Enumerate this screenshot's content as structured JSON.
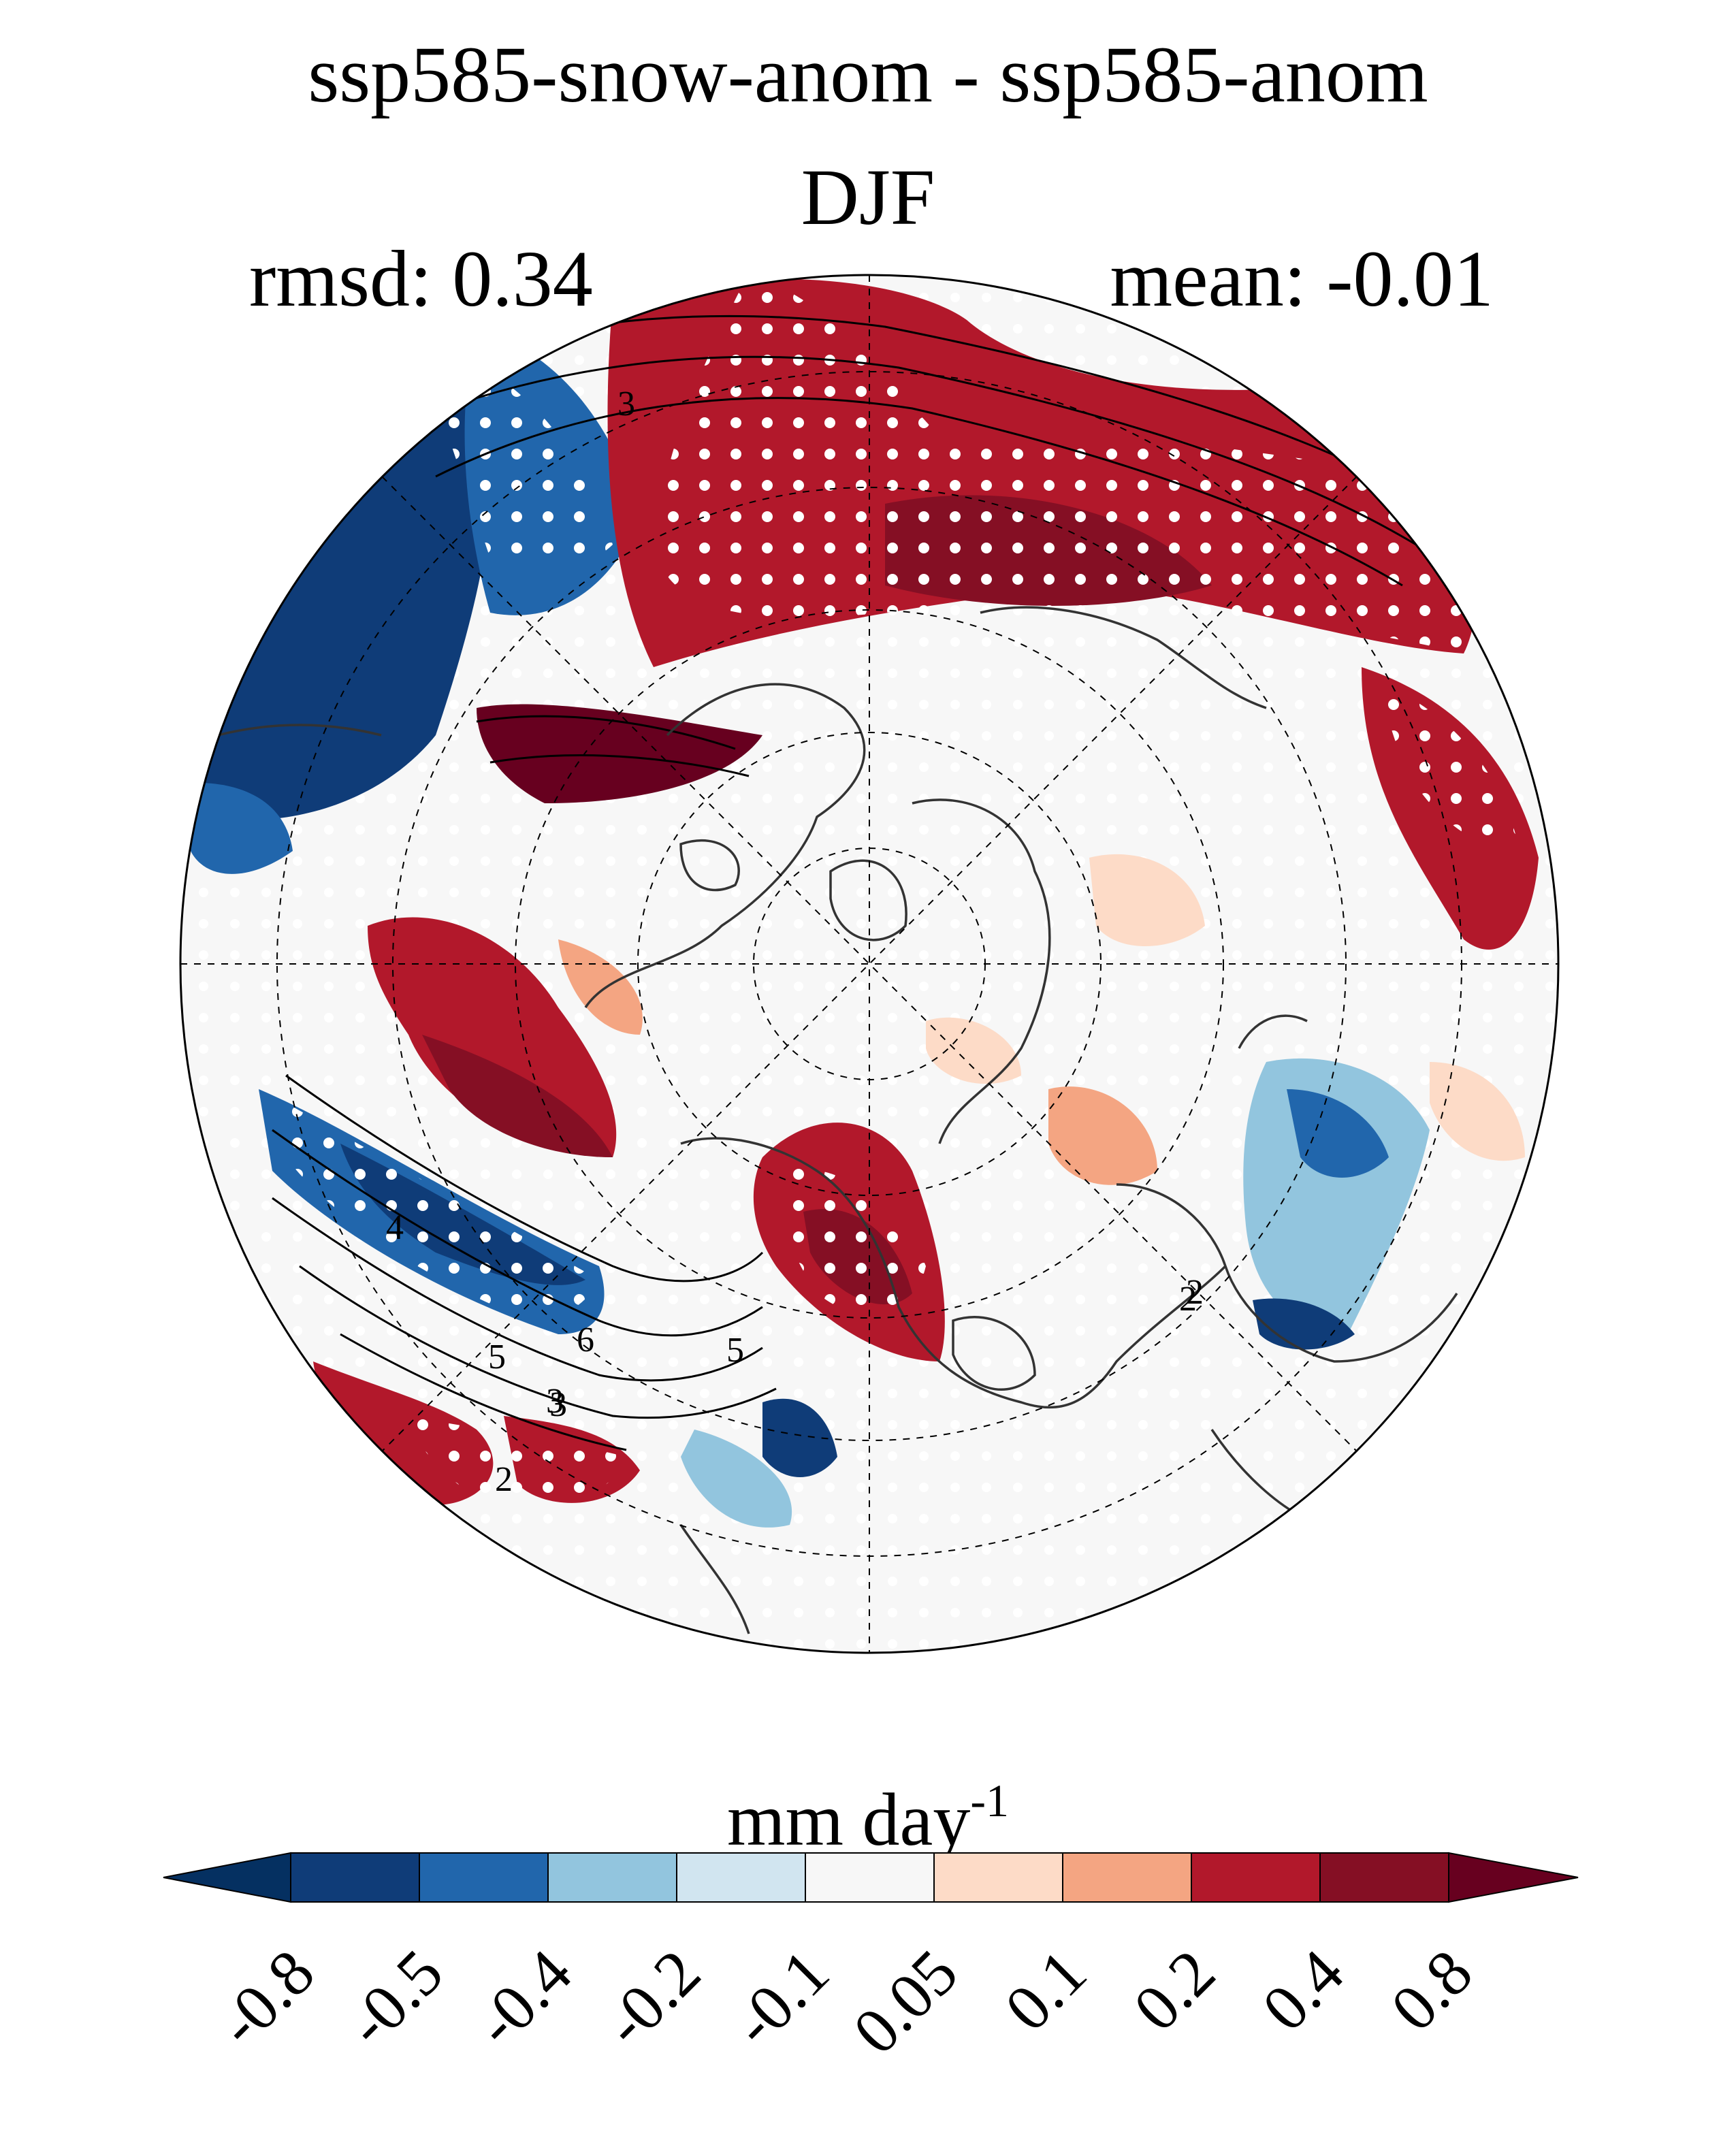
{
  "title_line1": "ssp585-snow-anom - ssp585-anom",
  "title_line2": "DJF",
  "stat_left": "rmsd: 0.34",
  "stat_right": "mean: -0.01",
  "map": {
    "projection": "north-polar-stereographic",
    "fill_variable": "precipitation anomaly difference",
    "stippling": "white dots mark significant grid cells",
    "contour_color": "#000000",
    "coastline_color": "#333333",
    "contour_labels": [
      "3",
      "2",
      "2",
      "3",
      "4",
      "5",
      "6",
      "5",
      "3",
      "2"
    ]
  },
  "colorbar": {
    "unit_main": "mm day",
    "unit_sup": "-1",
    "tick_labels": [
      "-0.8",
      "-0.5",
      "-0.4",
      "-0.2",
      "-0.1",
      "0.05",
      "0.1",
      "0.2",
      "0.4",
      "0.8"
    ],
    "colors": [
      "#053061",
      "#0f3c78",
      "#2166ac",
      "#92c5de",
      "#d1e5f0",
      "#f7f7f7",
      "#fddbc7",
      "#f4a582",
      "#b2182b",
      "#850f24",
      "#67001f"
    ]
  }
}
